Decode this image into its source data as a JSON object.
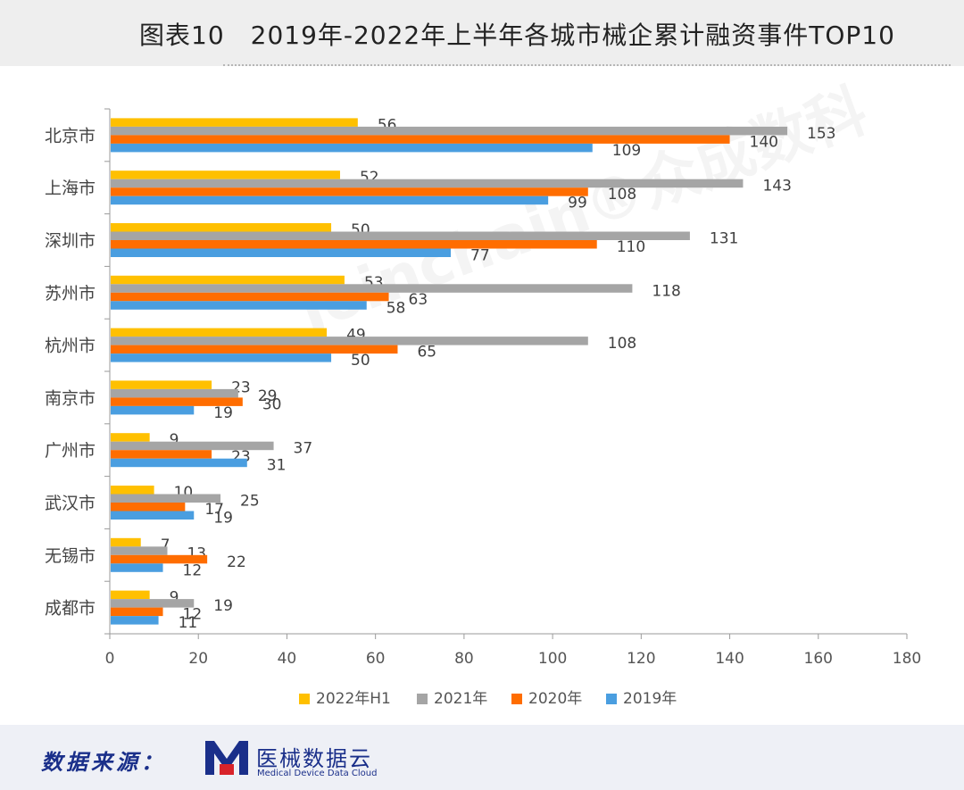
{
  "header": {
    "title": "图表10　2019年-2022年上半年各城市械企累计融资事件TOP10"
  },
  "watermark": {
    "text": "Joinchain®众成数科"
  },
  "footer": {
    "source_label": "数据来源：",
    "brand_name": "医械数据云",
    "brand_sub": "Medical Device Data Cloud"
  },
  "chart_data": {
    "type": "bar",
    "orientation": "horizontal",
    "categories": [
      "北京市",
      "上海市",
      "深圳市",
      "苏州市",
      "杭州市",
      "南京市",
      "广州市",
      "武汉市",
      "无锡市",
      "成都市"
    ],
    "series": [
      {
        "name": "2022年H1",
        "color": "#ffc000",
        "values": [
          56,
          52,
          50,
          53,
          49,
          23,
          9,
          10,
          7,
          9
        ]
      },
      {
        "name": "2021年",
        "color": "#a5a5a5",
        "values": [
          153,
          143,
          131,
          118,
          108,
          29,
          37,
          25,
          13,
          19
        ]
      },
      {
        "name": "2020年",
        "color": "#ff6d00",
        "values": [
          140,
          108,
          110,
          63,
          65,
          30,
          23,
          17,
          22,
          12
        ]
      },
      {
        "name": "2019年",
        "color": "#4a9ee0",
        "values": [
          109,
          99,
          77,
          58,
          50,
          19,
          31,
          19,
          12,
          11
        ]
      }
    ],
    "xlim": [
      0,
      180
    ],
    "xticks": [
      0,
      20,
      40,
      60,
      80,
      100,
      120,
      140,
      160,
      180
    ],
    "grid": false,
    "legend": "bottom",
    "data_labels": true
  }
}
